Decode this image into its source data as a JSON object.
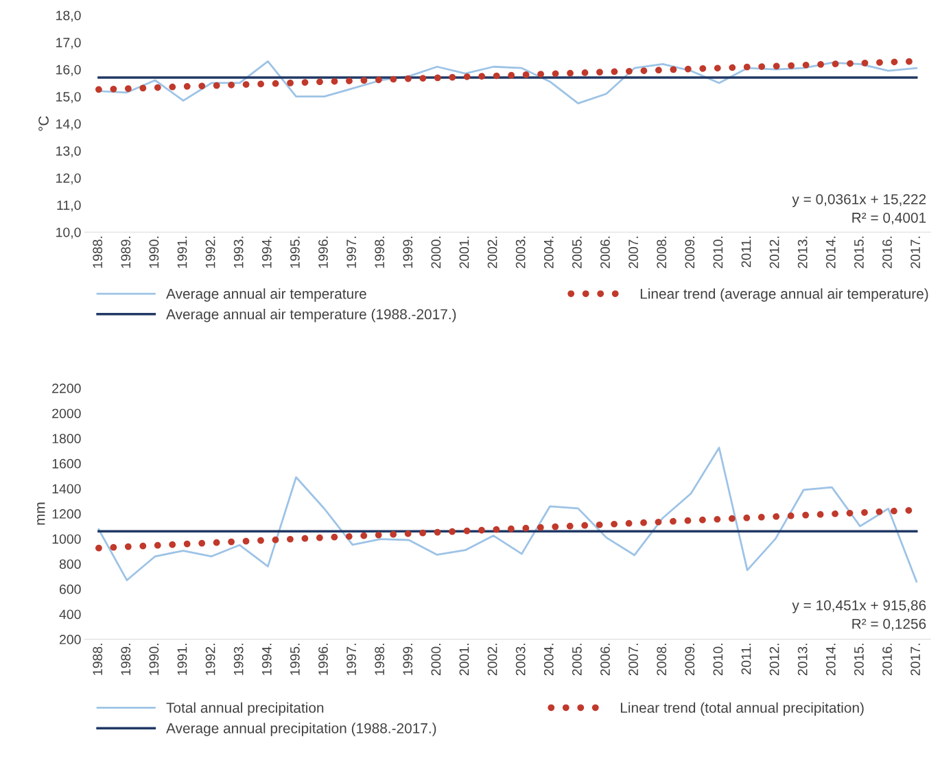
{
  "chart_data": [
    {
      "type": "line",
      "ylabel": "°C",
      "categories": [
        "1988.",
        "1989.",
        "1990.",
        "1991.",
        "1992.",
        "1993.",
        "1994.",
        "1995.",
        "1996.",
        "1997.",
        "1998.",
        "1999.",
        "2000.",
        "2001.",
        "2002.",
        "2003.",
        "2004.",
        "2005.",
        "2006.",
        "2007.",
        "2008.",
        "2009.",
        "2010.",
        "2011.",
        "2012.",
        "2013.",
        "2014.",
        "2015.",
        "2016.",
        "2017."
      ],
      "series": [
        {
          "name": "Average annual air temperature",
          "color": "#9dc3e6",
          "line_style": "solid",
          "values": [
            15.2,
            15.15,
            15.6,
            14.85,
            15.5,
            15.5,
            16.3,
            15.0,
            15.0,
            15.3,
            15.6,
            15.75,
            16.1,
            15.85,
            16.1,
            16.05,
            15.55,
            14.75,
            15.1,
            16.05,
            16.2,
            15.95,
            15.5,
            16.05,
            16.0,
            16.05,
            16.25,
            16.2,
            15.95,
            16.05
          ]
        },
        {
          "name": "Average annual air temperature (1988.-2017.)",
          "color": "#203864",
          "line_style": "solid",
          "values": [
            15.7,
            15.7,
            15.7,
            15.7,
            15.7,
            15.7,
            15.7,
            15.7,
            15.7,
            15.7,
            15.7,
            15.7,
            15.7,
            15.7,
            15.7,
            15.7,
            15.7,
            15.7,
            15.7,
            15.7,
            15.7,
            15.7,
            15.7,
            15.7,
            15.7,
            15.7,
            15.7,
            15.7,
            15.7,
            15.7
          ]
        },
        {
          "name": "Linear trend (average annual air temperature)",
          "color": "#c0392b",
          "line_style": "dotted",
          "values": [
            15.26,
            15.29,
            15.33,
            15.37,
            15.4,
            15.44,
            15.47,
            15.51,
            15.55,
            15.58,
            15.62,
            15.66,
            15.69,
            15.73,
            15.76,
            15.8,
            15.84,
            15.87,
            15.91,
            15.94,
            15.98,
            16.02,
            16.05,
            16.09,
            16.12,
            16.16,
            16.2,
            16.23,
            16.27,
            16.3
          ]
        }
      ],
      "ylim": [
        10,
        18
      ],
      "yticks": [
        {
          "value": 10,
          "label": "10,0"
        },
        {
          "value": 11,
          "label": "11,0"
        },
        {
          "value": 12,
          "label": "12,0"
        },
        {
          "value": 13,
          "label": "13,0"
        },
        {
          "value": 14,
          "label": "14,0"
        },
        {
          "value": 15,
          "label": "15,0"
        },
        {
          "value": 16,
          "label": "16,0"
        },
        {
          "value": 17,
          "label": "17,0"
        },
        {
          "value": 18,
          "label": "18,0"
        }
      ],
      "grid": false,
      "legend": "bottom",
      "marker": "none",
      "annotations": [
        "y = 0,0361x + 15,222\nR² = 0,4001"
      ]
    },
    {
      "type": "line",
      "ylabel": "mm",
      "categories": [
        "1988.",
        "1989.",
        "1990.",
        "1991.",
        "1992.",
        "1993.",
        "1994.",
        "1995.",
        "1996.",
        "1997.",
        "1998.",
        "1999.",
        "2000.",
        "2001.",
        "2002.",
        "2003.",
        "2004.",
        "2005.",
        "2006.",
        "2007.",
        "2008.",
        "2009.",
        "2010.",
        "2011.",
        "2012.",
        "2013.",
        "2014.",
        "2015.",
        "2016.",
        "2017."
      ],
      "series": [
        {
          "name": "Total annual precipitation",
          "color": "#9dc3e6",
          "line_style": "solid",
          "values": [
            1075,
            670,
            860,
            905,
            860,
            950,
            780,
            1490,
            1240,
            953,
            998,
            990,
            873,
            910,
            1025,
            880,
            1258,
            1242,
            1010,
            870,
            1165,
            1360,
            1725,
            750,
            1000,
            1390,
            1410,
            1100,
            1240,
            660
          ]
        },
        {
          "name": "Average annual precipitation (1988.-2017.)",
          "color": "#203864",
          "line_style": "solid",
          "values": [
            1060,
            1060,
            1060,
            1060,
            1060,
            1060,
            1060,
            1060,
            1060,
            1060,
            1060,
            1060,
            1060,
            1060,
            1060,
            1060,
            1060,
            1060,
            1060,
            1060,
            1060,
            1060,
            1060,
            1060,
            1060,
            1060,
            1060,
            1060,
            1060,
            1060
          ]
        },
        {
          "name": "Linear trend (total annual precipitation)",
          "color": "#c0392b",
          "line_style": "dotted",
          "values": [
            926,
            937,
            947,
            958,
            968,
            979,
            989,
            999,
            1010,
            1020,
            1031,
            1041,
            1052,
            1062,
            1073,
            1083,
            1094,
            1104,
            1114,
            1125,
            1135,
            1146,
            1156,
            1167,
            1177,
            1188,
            1198,
            1208,
            1219,
            1229
          ]
        }
      ],
      "ylim": [
        200,
        2200
      ],
      "yticks": [
        200,
        400,
        600,
        800,
        1000,
        1200,
        1400,
        1600,
        1800,
        2000,
        2200
      ],
      "grid": false,
      "legend": "bottom",
      "marker": "none",
      "annotations": [
        "y = 10,451x + 915,86\nR² = 0,1256"
      ]
    }
  ]
}
